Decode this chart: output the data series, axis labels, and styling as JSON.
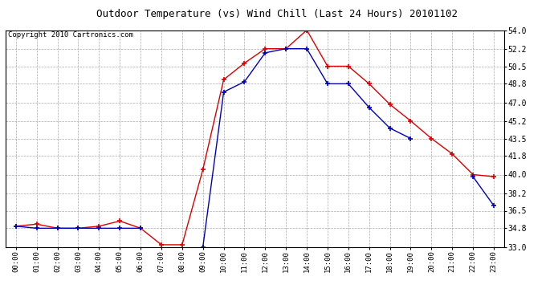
{
  "title": "Outdoor Temperature (vs) Wind Chill (Last 24 Hours) 20101102",
  "copyright_text": "Copyright 2010 Cartronics.com",
  "hours": [
    "00:00",
    "01:00",
    "02:00",
    "03:00",
    "04:00",
    "05:00",
    "06:00",
    "07:00",
    "08:00",
    "09:00",
    "10:00",
    "11:00",
    "12:00",
    "13:00",
    "14:00",
    "15:00",
    "16:00",
    "17:00",
    "18:00",
    "19:00",
    "20:00",
    "21:00",
    "22:00",
    "23:00"
  ],
  "temp_red": [
    35.0,
    35.2,
    34.8,
    34.8,
    35.0,
    35.5,
    34.8,
    33.2,
    33.2,
    40.5,
    49.2,
    50.8,
    52.2,
    52.2,
    54.0,
    50.5,
    50.5,
    48.8,
    46.8,
    45.2,
    43.5,
    42.0,
    40.0,
    39.8
  ],
  "wind_blue": [
    35.0,
    34.8,
    34.8,
    34.8,
    34.8,
    34.8,
    34.8,
    null,
    null,
    33.0,
    48.0,
    49.0,
    51.8,
    52.2,
    52.2,
    48.8,
    48.8,
    46.5,
    44.5,
    43.5,
    null,
    null,
    39.8,
    37.0
  ],
  "ylim_min": 33.0,
  "ylim_max": 54.0,
  "yticks": [
    33.0,
    34.8,
    36.5,
    38.2,
    40.0,
    41.8,
    43.5,
    45.2,
    47.0,
    48.8,
    50.5,
    52.2,
    54.0
  ],
  "bg_color": "#ffffff",
  "plot_bg_color": "#ffffff",
  "grid_color": "#aaaaaa",
  "red_color": "#dd0000",
  "blue_color": "#0000bb",
  "title_fontsize": 9,
  "copyright_fontsize": 6.5
}
